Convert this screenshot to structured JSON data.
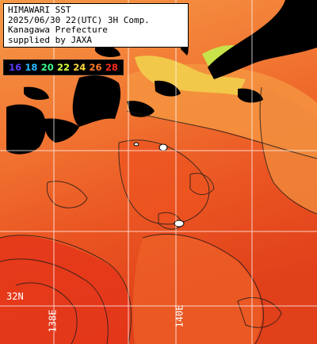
{
  "header": {
    "line1": "HIMAWARI SST",
    "line2": "2025/06/30 22(UTC) 3H Comp.",
    "line3": "Kanagawa Prefecture",
    "line4": "supplied by JAXA"
  },
  "legend": {
    "ticks": [
      {
        "label": "16",
        "color": "#5a3cff"
      },
      {
        "label": "18",
        "color": "#28b8ff"
      },
      {
        "label": "20",
        "color": "#3cff8c"
      },
      {
        "label": "22",
        "color": "#d6ff3c"
      },
      {
        "label": "24",
        "color": "#ffd83c"
      },
      {
        "label": "26",
        "color": "#ff7a28"
      },
      {
        "label": "28",
        "color": "#ff2a1e"
      }
    ]
  },
  "grid_labels": {
    "lat": "32N",
    "lon_left": "138E",
    "lon_right": "140E"
  },
  "colors": {
    "land": "#000000",
    "water_warm": "#f26a2c",
    "water_hot": "#e8401e",
    "water_cool": "#f59a48",
    "coastal": "#f5c24a",
    "gridline": "#ffffff",
    "contour": "#1a1a1a"
  }
}
